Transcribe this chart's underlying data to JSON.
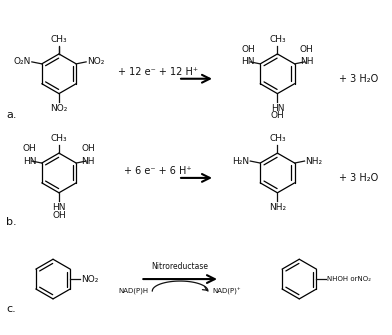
{
  "bg_color": "#ffffff",
  "text_color": "#111111",
  "label_a": "a.",
  "label_b": "b.",
  "label_c": "c.",
  "reaction_a_middle": "+ 12 e⁻ + 12 H⁺",
  "reaction_b_middle": "+ 6 e⁻ + 6 H⁺",
  "reaction_a_right": "+ 3 H₂O",
  "reaction_b_right": "+ 3 H₂O",
  "enzyme_label": "Nitroreductase",
  "cofactor_left": "NAD(P)H",
  "cofactor_right": "NAD(P)⁺",
  "product_c": "NHOH orNO₂",
  "hex_r": 20,
  "lw": 0.9,
  "fs": 7.0
}
